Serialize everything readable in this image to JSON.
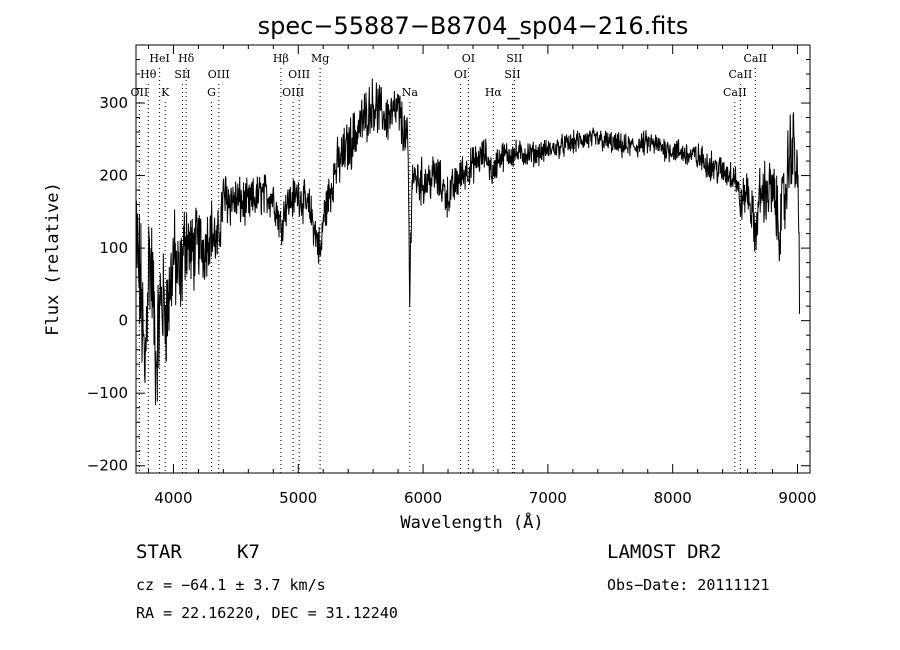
{
  "chart_data": {
    "type": "line",
    "title": "spec−55887−B8704_sp04−216.fits",
    "xlabel": "Wavelength (Å)",
    "ylabel": "Flux (relative)",
    "xlim": [
      3700,
      9100
    ],
    "ylim": [
      -210,
      380
    ],
    "xticks": [
      4000,
      5000,
      6000,
      7000,
      8000,
      9000
    ],
    "yticks": [
      -200,
      -100,
      0,
      100,
      200,
      300
    ],
    "xtick_labels": [
      "4000",
      "5000",
      "6000",
      "7000",
      "8000",
      "9000"
    ],
    "ytick_labels": [
      "−200",
      "−100",
      "0",
      "100",
      "200",
      "300"
    ],
    "grid": false,
    "series": [
      {
        "color": "#000000",
        "anchors": [
          [
            3700,
            110
          ],
          [
            3740,
            40
          ],
          [
            3770,
            -80
          ],
          [
            3800,
            90
          ],
          [
            3830,
            60
          ],
          [
            3860,
            -60
          ],
          [
            3900,
            30
          ],
          [
            3950,
            10
          ],
          [
            4000,
            90
          ],
          [
            4050,
            50
          ],
          [
            4100,
            120
          ],
          [
            4150,
            90
          ],
          [
            4200,
            110
          ],
          [
            4250,
            100
          ],
          [
            4300,
            130
          ],
          [
            4350,
            100
          ],
          [
            4400,
            170
          ],
          [
            4500,
            165
          ],
          [
            4600,
            160
          ],
          [
            4700,
            175
          ],
          [
            4800,
            170
          ],
          [
            4860,
            130
          ],
          [
            4900,
            160
          ],
          [
            5000,
            175
          ],
          [
            5100,
            150
          ],
          [
            5180,
            90
          ],
          [
            5200,
            140
          ],
          [
            5300,
            210
          ],
          [
            5400,
            240
          ],
          [
            5500,
            270
          ],
          [
            5600,
            300
          ],
          [
            5700,
            280
          ],
          [
            5800,
            290
          ],
          [
            5880,
            240
          ],
          [
            5893,
            20
          ],
          [
            5910,
            200
          ],
          [
            6000,
            190
          ],
          [
            6100,
            200
          ],
          [
            6200,
            170
          ],
          [
            6300,
            200
          ],
          [
            6400,
            215
          ],
          [
            6500,
            230
          ],
          [
            6563,
            200
          ],
          [
            6600,
            225
          ],
          [
            6700,
            230
          ],
          [
            6800,
            230
          ],
          [
            6900,
            230
          ],
          [
            7000,
            235
          ],
          [
            7100,
            240
          ],
          [
            7200,
            245
          ],
          [
            7300,
            250
          ],
          [
            7400,
            250
          ],
          [
            7500,
            245
          ],
          [
            7600,
            240
          ],
          [
            7700,
            240
          ],
          [
            7800,
            245
          ],
          [
            7900,
            240
          ],
          [
            8000,
            235
          ],
          [
            8100,
            230
          ],
          [
            8200,
            225
          ],
          [
            8300,
            215
          ],
          [
            8400,
            205
          ],
          [
            8500,
            200
          ],
          [
            8542,
            160
          ],
          [
            8600,
            180
          ],
          [
            8662,
            120
          ],
          [
            8700,
            175
          ],
          [
            8800,
            180
          ],
          [
            8850,
            130
          ],
          [
            8900,
            170
          ],
          [
            8950,
            250
          ],
          [
            9000,
            200
          ],
          [
            9020,
            5
          ]
        ],
        "noise": [
          [
            3700,
            80
          ],
          [
            4000,
            55
          ],
          [
            4300,
            35
          ],
          [
            4600,
            25
          ],
          [
            5000,
            22
          ],
          [
            5400,
            30
          ],
          [
            5800,
            28
          ],
          [
            6100,
            25
          ],
          [
            6500,
            18
          ],
          [
            7000,
            12
          ],
          [
            8000,
            14
          ],
          [
            8500,
            18
          ],
          [
            8900,
            45
          ],
          [
            9020,
            55
          ]
        ]
      }
    ],
    "line_markers": [
      {
        "label": "OII",
        "wavelength": 3727,
        "row": 3
      },
      {
        "label": "Hθ",
        "wavelength": 3798,
        "row": 2
      },
      {
        "label": "HeI",
        "wavelength": 3889,
        "row": 1
      },
      {
        "label": "K",
        "wavelength": 3934,
        "row": 3
      },
      {
        "label": "SII",
        "wavelength": 4072,
        "row": 2
      },
      {
        "label": "Hδ",
        "wavelength": 4102,
        "row": 1
      },
      {
        "label": "G",
        "wavelength": 4305,
        "row": 3
      },
      {
        "label": "OIII",
        "wavelength": 4363,
        "row": 2
      },
      {
        "label": "Hβ",
        "wavelength": 4861,
        "row": 1
      },
      {
        "label": "OIII",
        "wavelength": 4959,
        "row": 3
      },
      {
        "label": "OIII",
        "wavelength": 5007,
        "row": 2
      },
      {
        "label": "Mg",
        "wavelength": 5175,
        "row": 1
      },
      {
        "label": "Na",
        "wavelength": 5894,
        "row": 3
      },
      {
        "label": "OI",
        "wavelength": 6300,
        "row": 2
      },
      {
        "label": "OI",
        "wavelength": 6363,
        "row": 1
      },
      {
        "label": "Hα",
        "wavelength": 6563,
        "row": 3
      },
      {
        "label": "SII",
        "wavelength": 6716,
        "row": 2
      },
      {
        "label": "SII",
        "wavelength": 6731,
        "row": 1
      },
      {
        "label": "CaII",
        "wavelength": 8498,
        "row": 3
      },
      {
        "label": "CaII",
        "wavelength": 8542,
        "row": 2
      },
      {
        "label": "CaII",
        "wavelength": 8662,
        "row": 1
      }
    ]
  },
  "info": {
    "object_type": "STAR",
    "subclass": "K7",
    "survey": "LAMOST DR2",
    "cz_text": "cz = −64.1 ± 3.7 km/s",
    "obs_date_text": "Obs−Date: 20111121",
    "radec_text": "RA =  22.16220, DEC =  31.12240"
  }
}
